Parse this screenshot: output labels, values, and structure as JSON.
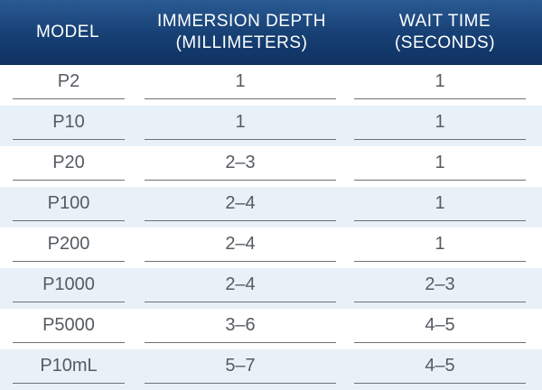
{
  "table": {
    "header": [
      [
        "MODEL"
      ],
      [
        "IMMERSION DEPTH",
        "(MILLIMETERS)"
      ],
      [
        "WAIT TIME",
        "(SECONDS)"
      ]
    ],
    "rows": [
      [
        "P2",
        "1",
        "1"
      ],
      [
        "P10",
        "1",
        "1"
      ],
      [
        "P20",
        "2–3",
        "1"
      ],
      [
        "P100",
        "2–4",
        "1"
      ],
      [
        "P200",
        "2–4",
        "1"
      ],
      [
        "P1000",
        "2–4",
        "2–3"
      ],
      [
        "P5000",
        "3–6",
        "4–5"
      ],
      [
        "P10mL",
        "5–7",
        "4–5"
      ]
    ]
  }
}
